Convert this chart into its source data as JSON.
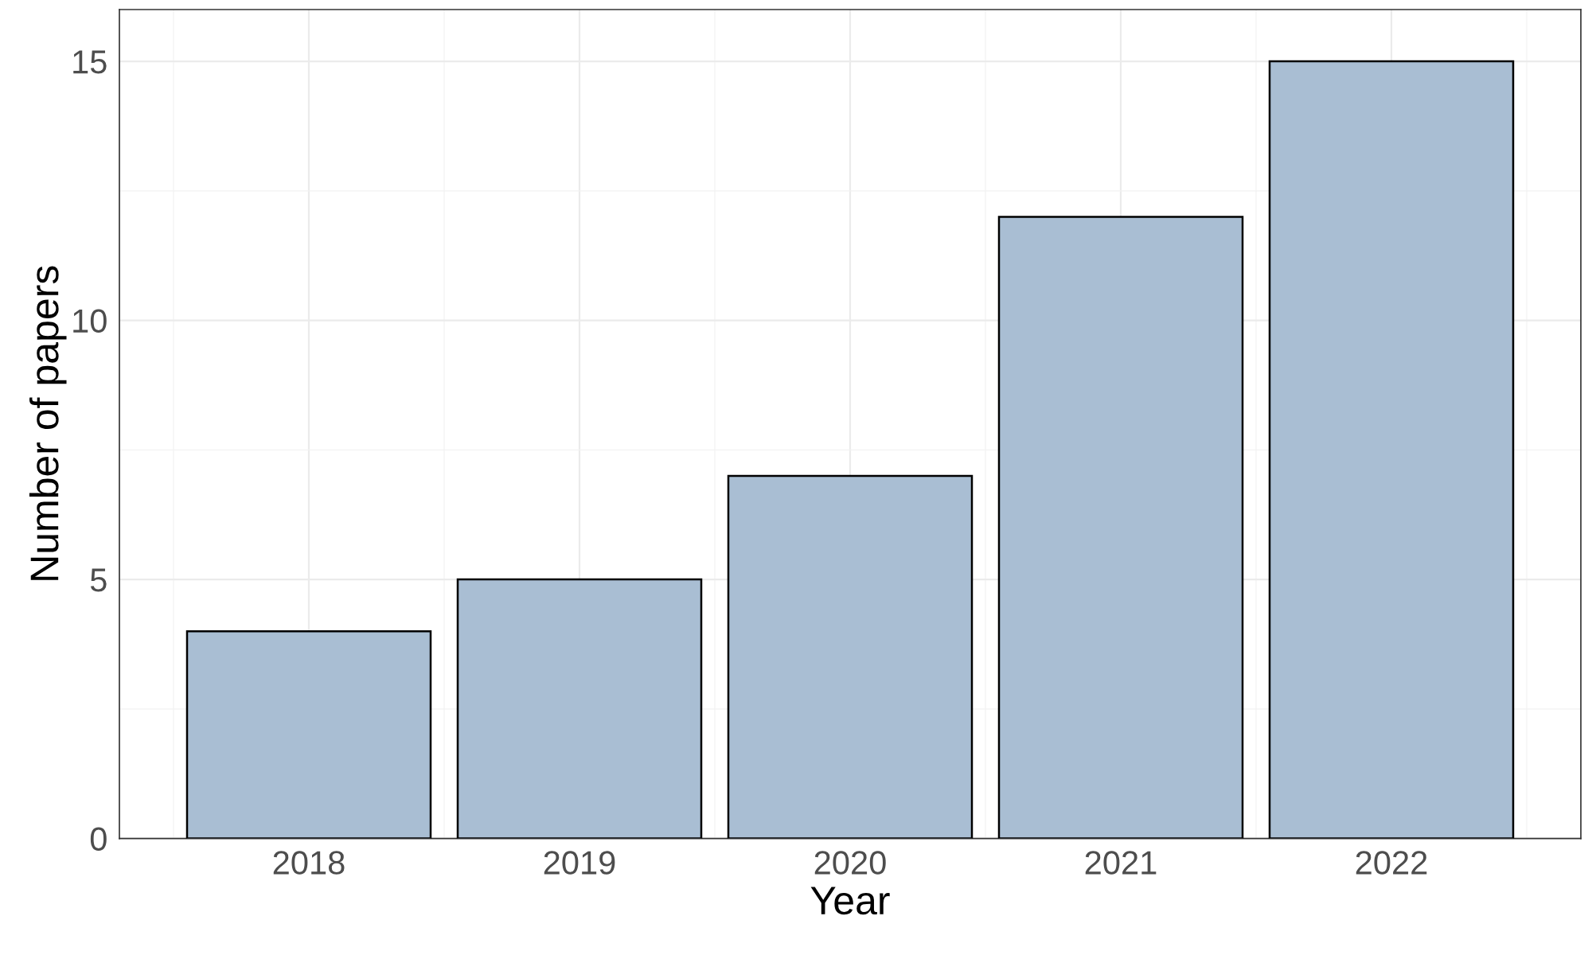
{
  "chart_data": {
    "type": "bar",
    "xlabel": "Year",
    "ylabel": "Number of papers",
    "categories": [
      "2018",
      "2019",
      "2020",
      "2021",
      "2022"
    ],
    "values": [
      4,
      5,
      7,
      12,
      15
    ],
    "color": "#a9bed3",
    "ylim": [
      0,
      16
    ],
    "yticks": [
      0,
      5,
      10,
      15
    ],
    "grid": true
  }
}
